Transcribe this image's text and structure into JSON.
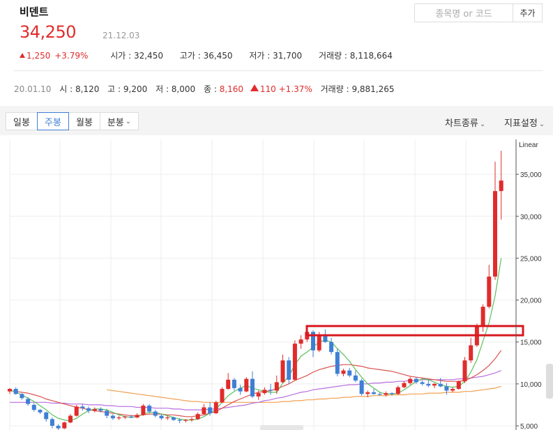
{
  "stock": {
    "name": "비덴트",
    "price": "34,250",
    "date": "21.12.03",
    "change": "1,250",
    "change_pct": "+3.79%",
    "open_label": "시가",
    "open": "32,450",
    "high_label": "고가",
    "high": "36,450",
    "low_label": "저가",
    "low": "31,700",
    "volume_label": "거래량",
    "volume": "8,118,664"
  },
  "search": {
    "placeholder": "종목명 or 코드",
    "add_label": "추가"
  },
  "hover": {
    "date": "20.01.10",
    "open_label": "시",
    "open": "8,120",
    "high_label": "고",
    "high": "9,200",
    "low_label": "저",
    "low": "8,000",
    "close_label": "종",
    "close": "8,160",
    "change": "110",
    "change_pct": "+1.37%",
    "volume_label": "거래량",
    "volume": "9,881,265"
  },
  "tabs": [
    {
      "label": "일봉"
    },
    {
      "label": "주봉",
      "active": true
    },
    {
      "label": "월봉"
    },
    {
      "label": "분봉"
    }
  ],
  "menus": {
    "chart_type": "차트종류",
    "indicator": "지표설정"
  },
  "colors": {
    "up": "#e12b2b",
    "down": "#3e7fd6",
    "ma5": "#5cbf5c",
    "ma20": "#d9534f",
    "ma60": "#b86fe0",
    "ma120": "#f0a050",
    "highlight_box": "#d71920"
  },
  "chart_data": {
    "type": "candlestick",
    "scale_label": "Linear",
    "y_ticks": [
      "35,000",
      "30,000",
      "25,000",
      "20,000",
      "15,000",
      "10,000",
      "5,000"
    ],
    "ylim": [
      4500,
      38500
    ],
    "highlight_band": [
      15800,
      16900
    ],
    "candles": [
      [
        9100,
        9500,
        8800,
        9400
      ],
      [
        9400,
        9600,
        8700,
        8800
      ],
      [
        8800,
        8900,
        8100,
        8300
      ],
      [
        8200,
        8400,
        7400,
        7600
      ],
      [
        7500,
        7700,
        6700,
        6900
      ],
      [
        6900,
        7000,
        6400,
        6600
      ],
      [
        6600,
        6700,
        5500,
        5800
      ],
      [
        5800,
        6000,
        4700,
        5000
      ],
      [
        5000,
        5200,
        4400,
        4700
      ],
      [
        4700,
        5500,
        4600,
        5400
      ],
      [
        5400,
        6400,
        5300,
        6200
      ],
      [
        6200,
        7500,
        6100,
        7300
      ],
      [
        7300,
        7600,
        6800,
        7100
      ],
      [
        7100,
        7300,
        6500,
        6800
      ],
      [
        6800,
        7200,
        6600,
        7000
      ],
      [
        7000,
        7200,
        6600,
        6800
      ],
      [
        6800,
        7000,
        5900,
        6200
      ],
      [
        6200,
        6400,
        5700,
        5900
      ],
      [
        5900,
        6200,
        5700,
        6000
      ],
      [
        6000,
        6200,
        5800,
        6100
      ],
      [
        6100,
        6300,
        5900,
        6000
      ],
      [
        6000,
        6500,
        5900,
        6300
      ],
      [
        6300,
        7600,
        6200,
        7400
      ],
      [
        7400,
        7600,
        6500,
        6700
      ],
      [
        6700,
        6900,
        6000,
        6200
      ],
      [
        6200,
        6400,
        5700,
        5900
      ],
      [
        5900,
        6200,
        5700,
        6000
      ],
      [
        6000,
        6100,
        5600,
        5700
      ],
      [
        5700,
        5900,
        5300,
        5600
      ],
      [
        5600,
        5800,
        5400,
        5700
      ],
      [
        5700,
        6000,
        5500,
        5800
      ],
      [
        5800,
        6600,
        5700,
        6400
      ],
      [
        6400,
        7600,
        6300,
        7200
      ],
      [
        7200,
        7800,
        6200,
        6500
      ],
      [
        6500,
        8000,
        6400,
        7800
      ],
      [
        7800,
        9600,
        7700,
        9400
      ],
      [
        9400,
        11300,
        9300,
        10500
      ],
      [
        10500,
        10700,
        9200,
        9500
      ],
      [
        9500,
        9900,
        8700,
        9100
      ],
      [
        9100,
        10800,
        9000,
        10600
      ],
      [
        10600,
        11500,
        8300,
        8500
      ],
      [
        8500,
        9200,
        8100,
        8900
      ],
      [
        8900,
        9600,
        8700,
        9300
      ],
      [
        9300,
        10000,
        8700,
        9200
      ],
      [
        9200,
        11000,
        8800,
        10200
      ],
      [
        10200,
        13500,
        10100,
        12800
      ],
      [
        12800,
        13200,
        10000,
        10500
      ],
      [
        10500,
        15200,
        10400,
        14800
      ],
      [
        14800,
        15800,
        14200,
        15300
      ],
      [
        15300,
        16500,
        15000,
        16200
      ],
      [
        16200,
        16400,
        13200,
        14000
      ],
      [
        14000,
        16200,
        13800,
        15800
      ],
      [
        15800,
        16500,
        14900,
        15000
      ],
      [
        15000,
        15500,
        13500,
        13800
      ],
      [
        13800,
        14200,
        10900,
        11200
      ],
      [
        11200,
        11800,
        10900,
        11600
      ],
      [
        11600,
        11900,
        10800,
        11000
      ],
      [
        11000,
        11600,
        10200,
        10400
      ],
      [
        10400,
        10600,
        8600,
        8800
      ],
      [
        8800,
        9200,
        8400,
        9000
      ],
      [
        9000,
        9400,
        8700,
        8800
      ],
      [
        8800,
        9000,
        8600,
        8700
      ],
      [
        8700,
        9100,
        8500,
        8900
      ],
      [
        8900,
        9000,
        8600,
        8800
      ],
      [
        8800,
        9800,
        8700,
        9600
      ],
      [
        9600,
        10300,
        9500,
        10100
      ],
      [
        10100,
        10800,
        9900,
        10600
      ],
      [
        10600,
        10800,
        10000,
        10200
      ],
      [
        10200,
        10400,
        9800,
        10000
      ],
      [
        10000,
        10500,
        9600,
        9800
      ],
      [
        9800,
        10100,
        9500,
        10000
      ],
      [
        10000,
        10700,
        9600,
        9700
      ],
      [
        9700,
        10100,
        8700,
        9200
      ],
      [
        9200,
        9600,
        9000,
        9400
      ],
      [
        9400,
        10400,
        9300,
        10300
      ],
      [
        10300,
        13200,
        10100,
        12800
      ],
      [
        12800,
        15500,
        12500,
        14600
      ],
      [
        14600,
        17200,
        14400,
        16900
      ],
      [
        16900,
        19500,
        16200,
        19200
      ],
      [
        19200,
        24200,
        19000,
        22800
      ],
      [
        22800,
        36500,
        22400,
        33000
      ],
      [
        33000,
        37800,
        29600,
        34250
      ]
    ],
    "ma5": [
      9300,
      9000,
      8700,
      8300,
      7900,
      7400,
      6900,
      6300,
      5900,
      5700,
      5600,
      5900,
      6400,
      6800,
      7000,
      7000,
      6900,
      6600,
      6300,
      6100,
      6000,
      6100,
      6400,
      6600,
      6600,
      6400,
      6200,
      6000,
      5800,
      5700,
      5700,
      5800,
      6100,
      6500,
      7000,
      7800,
      8600,
      9100,
      9500,
      9800,
      9500,
      9300,
      9100,
      9000,
      9000,
      10100,
      10900,
      12300,
      13300,
      13800,
      14400,
      15000,
      15200,
      15000,
      14200,
      13500,
      12700,
      11700,
      10800,
      10000,
      9500,
      9000,
      8800,
      8800,
      8900,
      9300,
      9800,
      10300,
      10600,
      10500,
      10200,
      9900,
      9700,
      9600,
      9700,
      10300,
      11400,
      12900,
      15100,
      17300,
      20500,
      25000
    ],
    "ma20": [
      9200,
      9100,
      9000,
      8900,
      8700,
      8500,
      8200,
      8000,
      7800,
      7600,
      7400,
      7200,
      7100,
      6900,
      6800,
      6700,
      6600,
      6500,
      6400,
      6300,
      6200,
      6200,
      6300,
      6400,
      6400,
      6400,
      6300,
      6300,
      6200,
      6100,
      6100,
      6200,
      6300,
      6500,
      6700,
      7100,
      7500,
      7900,
      8200,
      8500,
      8800,
      9000,
      9100,
      9200,
      9400,
      9700,
      10000,
      10400,
      10700,
      11000,
      11400,
      11700,
      11900,
      12100,
      12200,
      12300,
      12300,
      12200,
      12100,
      11900,
      11800,
      11700,
      11600,
      11500,
      11300,
      11100,
      10900,
      10800,
      10700,
      10600,
      10500,
      10400,
      10300,
      10300,
      10300,
      10400,
      10700,
      11100,
      11600,
      12200,
      13000,
      14000
    ],
    "ma60": [
      7800,
      7800,
      7800,
      7800,
      7800,
      7800,
      7800,
      7700,
      7700,
      7700,
      7600,
      7600,
      7600,
      7500,
      7500,
      7500,
      7400,
      7400,
      7300,
      7300,
      7300,
      7200,
      7200,
      7200,
      7100,
      7100,
      7100,
      7000,
      7000,
      6900,
      6900,
      6900,
      6900,
      7000,
      7000,
      7100,
      7200,
      7300,
      7400,
      7500,
      7700,
      7800,
      8000,
      8100,
      8300,
      8400,
      8600,
      8800,
      9000,
      9100,
      9300,
      9400,
      9500,
      9600,
      9700,
      9800,
      9900,
      9900,
      10000,
      10000,
      10100,
      10100,
      10200,
      10200,
      10300,
      10300,
      10400,
      10400,
      10500,
      10500,
      10500,
      10500,
      10500,
      10500,
      10600,
      10600,
      10700,
      10800,
      10900,
      11100,
      11300,
      11600
    ],
    "ma120": [
      null,
      null,
      null,
      null,
      null,
      null,
      null,
      null,
      null,
      null,
      null,
      null,
      null,
      null,
      null,
      null,
      9300,
      9200,
      9100,
      9000,
      8900,
      8800,
      8700,
      8600,
      8500,
      8400,
      8300,
      8200,
      8100,
      8000,
      7900,
      7900,
      7800,
      7800,
      7800,
      7800,
      7800,
      7800,
      7800,
      7800,
      7800,
      7800,
      7800,
      7800,
      7800,
      7900,
      7900,
      8000,
      8000,
      8100,
      8100,
      8200,
      8200,
      8300,
      8300,
      8400,
      8400,
      8500,
      8500,
      8500,
      8600,
      8600,
      8600,
      8700,
      8700,
      8700,
      8800,
      8800,
      8800,
      8900,
      8900,
      8900,
      9000,
      9000,
      9000,
      9100,
      9100,
      9200,
      9300,
      9400,
      9500,
      9700
    ]
  }
}
